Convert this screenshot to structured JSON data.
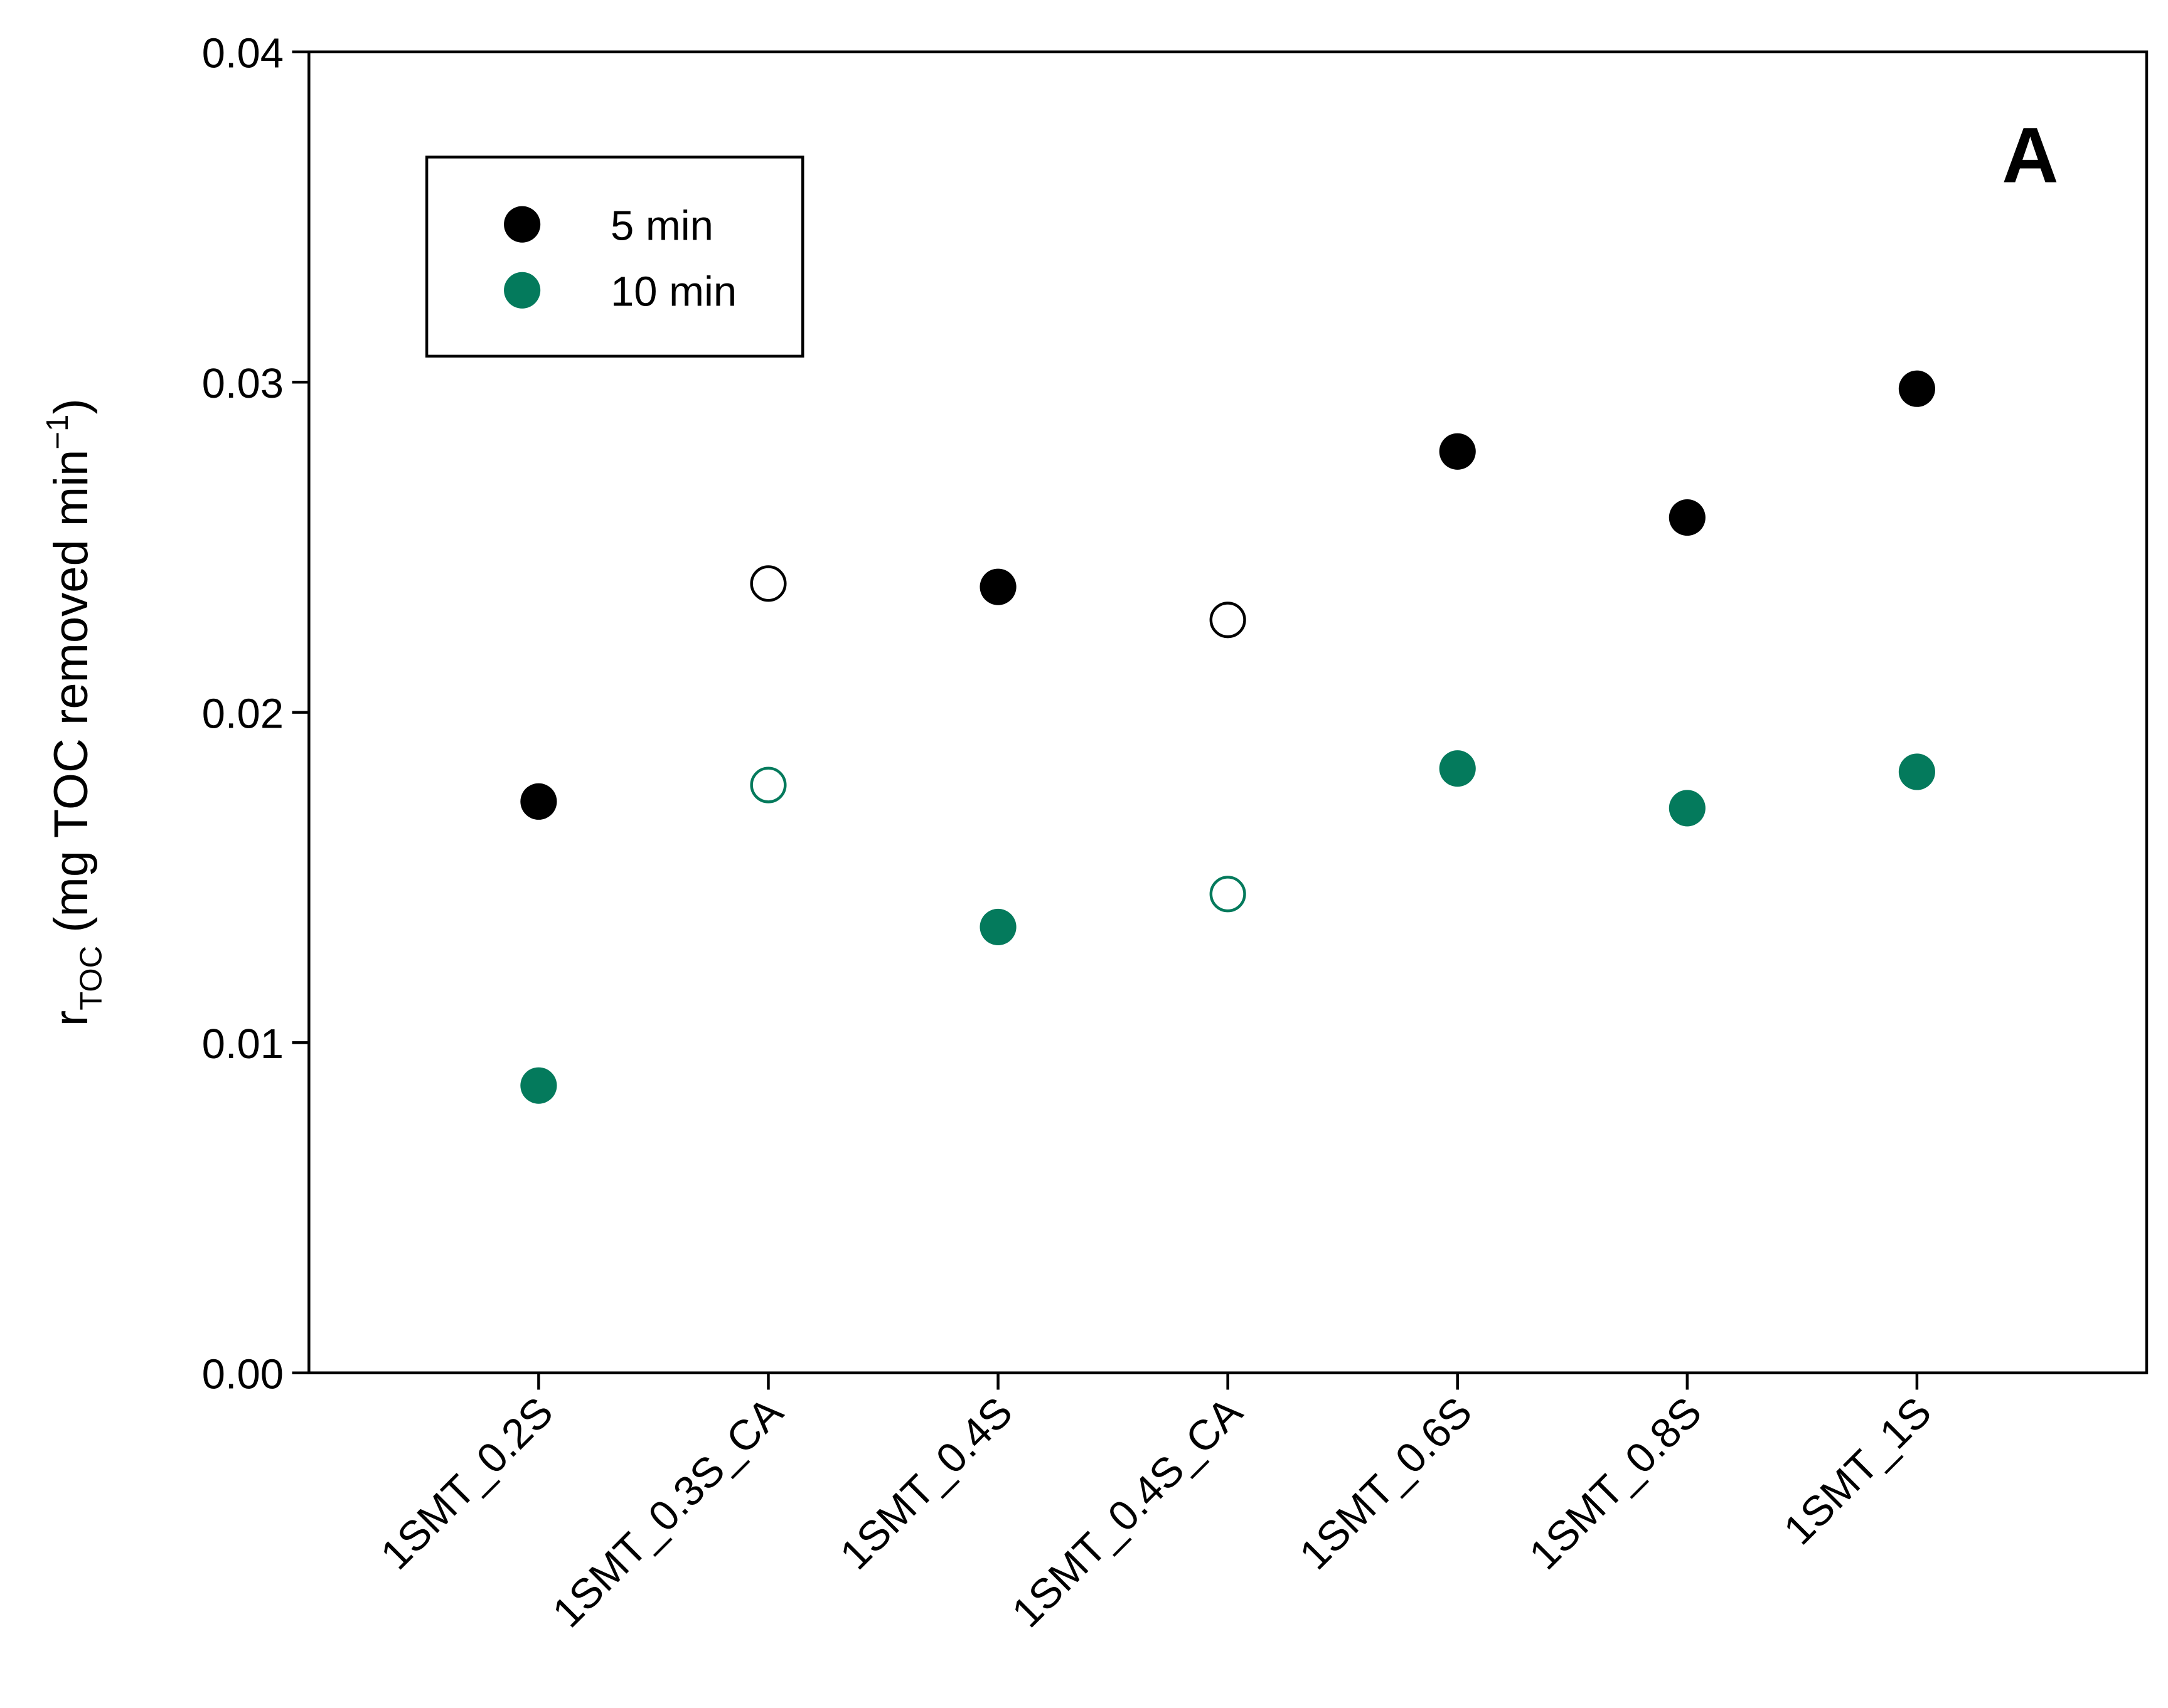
{
  "chart_data": {
    "type": "scatter",
    "panel_label": "A",
    "y_label": {
      "main": "r",
      "sub": "TOC",
      "text": " (mg TOC removed min",
      "sup": "−1",
      "end": ")"
    },
    "categories": [
      "1SMT_0.2S",
      "1SMT_0.3S_CA",
      "1SMT_0.4S",
      "1SMT_0.4S_CA",
      "1SMT_0.6S",
      "1SMT_0.8S",
      "1SMT_1S"
    ],
    "series": [
      {
        "name": "5 min",
        "color": "#000000",
        "values": [
          0.0173,
          0.0239,
          0.0238,
          0.0228,
          0.0279,
          0.0259,
          0.0298
        ],
        "filled": [
          true,
          false,
          true,
          false,
          true,
          true,
          true
        ]
      },
      {
        "name": "10 min",
        "color": "#047a5c",
        "values": [
          0.0087,
          0.0178,
          0.0135,
          0.0145,
          0.0183,
          0.0171,
          0.0182
        ],
        "filled": [
          true,
          false,
          true,
          false,
          true,
          true,
          true
        ]
      }
    ],
    "ylim": [
      0,
      0.04
    ],
    "yticks": [
      {
        "value": 0,
        "label": "0.00"
      },
      {
        "value": 0.01,
        "label": "0.01"
      },
      {
        "value": 0.02,
        "label": "0.02"
      },
      {
        "value": 0.03,
        "label": "0.03"
      },
      {
        "value": 0.04,
        "label": "0.04"
      }
    ],
    "legend": "upper left"
  }
}
